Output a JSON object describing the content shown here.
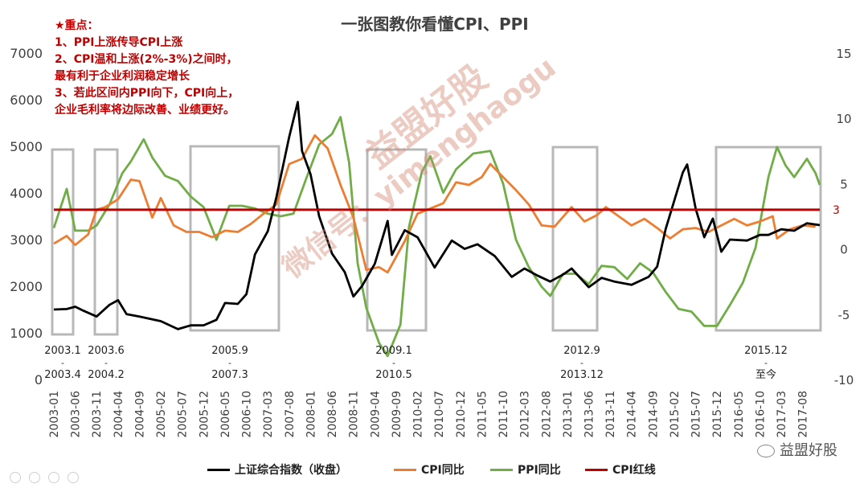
{
  "title": "一张图教你看懂CPI、PPI",
  "notes": [
    "★重点：",
    "1、PPI上涨传导CPI上涨",
    "2、CPI温和上涨(2%-3%)之间时，",
    "最有利于企业利润稳定增长",
    "3、若此区间内PPI向下，CPI向上，",
    "企业毛利率将边际改善、业绩更好。"
  ],
  "watermark": {
    "line1": "益盟好股",
    "line2": "微信号：yimenghaogu"
  },
  "brand": "益盟好股",
  "redline_label": "3",
  "legend": [
    {
      "label": "上证综合指数（收盘）",
      "color": "#000000"
    },
    {
      "label": "CPI同比",
      "color": "#ed7d31"
    },
    {
      "label": "PPI同比",
      "color": "#70ad47"
    },
    {
      "label": "CPI红线",
      "color": "#c00000"
    }
  ],
  "periods": [
    {
      "start": "2003.1",
      "dash": "-",
      "end": "2003.4"
    },
    {
      "start": "2003.6",
      "dash": "-",
      "end": "2004.2"
    },
    {
      "start": "2005.9",
      "dash": "-",
      "end": "2007.3"
    },
    {
      "start": "2009.1",
      "dash": "-",
      "end": "2010.5"
    },
    {
      "start": "2012.9",
      "dash": "-",
      "end": "2013.12"
    },
    {
      "start": "2015.12",
      "dash": "-",
      "end": "至今"
    }
  ],
  "chart_data": {
    "type": "line",
    "title": "一张图教你看懂CPI、PPI",
    "x_ticks": [
      "2003-01",
      "2003-06",
      "2003-11",
      "2004-04",
      "2004-09",
      "2005-02",
      "2005-07",
      "2005-12",
      "2006-05",
      "2006-10",
      "2007-03",
      "2007-08",
      "2008-01",
      "2008-06",
      "2008-11",
      "2009-04",
      "2009-09",
      "2010-02",
      "2010-07",
      "2010-12",
      "2011-05",
      "2011-10",
      "2012-03",
      "2012-08",
      "2013-01",
      "2013-06",
      "2013-11",
      "2014-04",
      "2014-09",
      "2015-02",
      "2015-07",
      "2015-12",
      "2016-05",
      "2016-10",
      "2017-03",
      "2017-08"
    ],
    "y_left_ticks": [
      0,
      1000,
      2000,
      3000,
      4000,
      5000,
      6000,
      7000
    ],
    "y_right_ticks": [
      -10,
      -5,
      0,
      5,
      10,
      15
    ],
    "ylim_left": [
      0,
      7000
    ],
    "ylim_right": [
      -10,
      15
    ],
    "grid": false,
    "legend_position": "bottom",
    "redline": {
      "name": "CPI红线",
      "value": 3,
      "axis": "right"
    },
    "series": [
      {
        "name": "上证综合指数（收盘）",
        "axis": "left",
        "points": [
          [
            "2003-01",
            1500
          ],
          [
            "2003-04",
            1510
          ],
          [
            "2003-06",
            1560
          ],
          [
            "2003-08",
            1470
          ],
          [
            "2003-11",
            1350
          ],
          [
            "2004-02",
            1600
          ],
          [
            "2004-04",
            1700
          ],
          [
            "2004-06",
            1400
          ],
          [
            "2004-09",
            1350
          ],
          [
            "2005-02",
            1250
          ],
          [
            "2005-06",
            1080
          ],
          [
            "2005-09",
            1160
          ],
          [
            "2005-12",
            1160
          ],
          [
            "2006-03",
            1280
          ],
          [
            "2006-05",
            1640
          ],
          [
            "2006-08",
            1620
          ],
          [
            "2006-10",
            1830
          ],
          [
            "2006-12",
            2680
          ],
          [
            "2007-03",
            3180
          ],
          [
            "2007-05",
            3900
          ],
          [
            "2007-08",
            5200
          ],
          [
            "2007-10",
            5950
          ],
          [
            "2007-11",
            4900
          ],
          [
            "2008-01",
            4400
          ],
          [
            "2008-03",
            3500
          ],
          [
            "2008-06",
            2700
          ],
          [
            "2008-09",
            2300
          ],
          [
            "2008-11",
            1780
          ],
          [
            "2009-01",
            2000
          ],
          [
            "2009-04",
            2480
          ],
          [
            "2009-07",
            3400
          ],
          [
            "2009-08",
            2670
          ],
          [
            "2009-11",
            3200
          ],
          [
            "2010-02",
            3050
          ],
          [
            "2010-06",
            2400
          ],
          [
            "2010-10",
            2980
          ],
          [
            "2011-01",
            2800
          ],
          [
            "2011-04",
            2900
          ],
          [
            "2011-08",
            2650
          ],
          [
            "2011-12",
            2200
          ],
          [
            "2012-03",
            2380
          ],
          [
            "2012-06",
            2230
          ],
          [
            "2012-09",
            2100
          ],
          [
            "2012-12",
            2250
          ],
          [
            "2013-02",
            2380
          ],
          [
            "2013-06",
            1980
          ],
          [
            "2013-09",
            2180
          ],
          [
            "2013-12",
            2100
          ],
          [
            "2014-04",
            2030
          ],
          [
            "2014-08",
            2200
          ],
          [
            "2014-10",
            2420
          ],
          [
            "2014-12",
            3230
          ],
          [
            "2015-04",
            4440
          ],
          [
            "2015-05",
            4610
          ],
          [
            "2015-07",
            3660
          ],
          [
            "2015-09",
            3050
          ],
          [
            "2015-11",
            3450
          ],
          [
            "2016-01",
            2740
          ],
          [
            "2016-03",
            3000
          ],
          [
            "2016-07",
            2980
          ],
          [
            "2016-10",
            3100
          ],
          [
            "2016-12",
            3100
          ],
          [
            "2017-03",
            3220
          ],
          [
            "2017-06",
            3190
          ],
          [
            "2017-09",
            3350
          ],
          [
            "2017-12",
            3310
          ]
        ]
      },
      {
        "name": "CPI同比",
        "axis": "right",
        "points": [
          [
            "2003-01",
            0.4
          ],
          [
            "2003-04",
            1.0
          ],
          [
            "2003-06",
            0.3
          ],
          [
            "2003-09",
            1.1
          ],
          [
            "2003-11",
            3.0
          ],
          [
            "2004-01",
            3.2
          ],
          [
            "2004-04",
            3.8
          ],
          [
            "2004-07",
            5.3
          ],
          [
            "2004-09",
            5.2
          ],
          [
            "2004-12",
            2.4
          ],
          [
            "2005-02",
            3.9
          ],
          [
            "2005-05",
            1.8
          ],
          [
            "2005-08",
            1.3
          ],
          [
            "2005-11",
            1.3
          ],
          [
            "2006-02",
            0.9
          ],
          [
            "2006-05",
            1.4
          ],
          [
            "2006-08",
            1.3
          ],
          [
            "2006-11",
            1.9
          ],
          [
            "2007-02",
            2.7
          ],
          [
            "2007-05",
            3.4
          ],
          [
            "2007-08",
            6.5
          ],
          [
            "2007-11",
            6.9
          ],
          [
            "2008-02",
            8.7
          ],
          [
            "2008-05",
            7.7
          ],
          [
            "2008-08",
            4.9
          ],
          [
            "2008-11",
            2.4
          ],
          [
            "2009-02",
            -1.6
          ],
          [
            "2009-05",
            -1.4
          ],
          [
            "2009-07",
            -1.8
          ],
          [
            "2009-11",
            0.6
          ],
          [
            "2010-02",
            2.7
          ],
          [
            "2010-05",
            3.1
          ],
          [
            "2010-08",
            3.5
          ],
          [
            "2010-11",
            5.1
          ],
          [
            "2011-02",
            4.9
          ],
          [
            "2011-05",
            5.5
          ],
          [
            "2011-07",
            6.5
          ],
          [
            "2011-10",
            5.5
          ],
          [
            "2012-01",
            4.5
          ],
          [
            "2012-04",
            3.4
          ],
          [
            "2012-07",
            1.8
          ],
          [
            "2012-10",
            1.7
          ],
          [
            "2013-02",
            3.2
          ],
          [
            "2013-05",
            2.1
          ],
          [
            "2013-08",
            2.6
          ],
          [
            "2013-10",
            3.2
          ],
          [
            "2014-01",
            2.5
          ],
          [
            "2014-04",
            1.8
          ],
          [
            "2014-07",
            2.3
          ],
          [
            "2014-10",
            1.6
          ],
          [
            "2015-01",
            0.8
          ],
          [
            "2015-04",
            1.5
          ],
          [
            "2015-07",
            1.6
          ],
          [
            "2015-10",
            1.3
          ],
          [
            "2016-01",
            1.8
          ],
          [
            "2016-04",
            2.3
          ],
          [
            "2016-07",
            1.8
          ],
          [
            "2016-10",
            2.1
          ],
          [
            "2017-01",
            2.5
          ],
          [
            "2017-02",
            0.8
          ],
          [
            "2017-05",
            1.5
          ],
          [
            "2017-08",
            1.8
          ],
          [
            "2017-11",
            1.7
          ]
        ]
      },
      {
        "name": "PPI同比",
        "axis": "right",
        "points": [
          [
            "2003-01",
            1.6
          ],
          [
            "2003-04",
            4.6
          ],
          [
            "2003-06",
            1.4
          ],
          [
            "2003-09",
            1.4
          ],
          [
            "2003-11",
            1.8
          ],
          [
            "2004-02",
            3.4
          ],
          [
            "2004-05",
            5.8
          ],
          [
            "2004-07",
            6.7
          ],
          [
            "2004-10",
            8.4
          ],
          [
            "2004-12",
            7.0
          ],
          [
            "2005-03",
            5.6
          ],
          [
            "2005-06",
            5.2
          ],
          [
            "2005-09",
            4.0
          ],
          [
            "2005-12",
            3.2
          ],
          [
            "2006-03",
            0.7
          ],
          [
            "2006-06",
            3.3
          ],
          [
            "2006-09",
            3.3
          ],
          [
            "2006-12",
            3.1
          ],
          [
            "2007-03",
            2.7
          ],
          [
            "2007-06",
            2.5
          ],
          [
            "2007-09",
            2.7
          ],
          [
            "2007-12",
            5.4
          ],
          [
            "2008-03",
            8.0
          ],
          [
            "2008-06",
            8.8
          ],
          [
            "2008-08",
            10.1
          ],
          [
            "2008-10",
            6.6
          ],
          [
            "2008-12",
            -1.1
          ],
          [
            "2009-02",
            -4.5
          ],
          [
            "2009-05",
            -7.2
          ],
          [
            "2009-07",
            -8.2
          ],
          [
            "2009-10",
            -5.8
          ],
          [
            "2009-12",
            1.7
          ],
          [
            "2010-03",
            5.9
          ],
          [
            "2010-05",
            7.1
          ],
          [
            "2010-08",
            4.3
          ],
          [
            "2010-11",
            6.1
          ],
          [
            "2011-03",
            7.3
          ],
          [
            "2011-07",
            7.5
          ],
          [
            "2011-10",
            5.0
          ],
          [
            "2012-01",
            0.7
          ],
          [
            "2012-04",
            -1.4
          ],
          [
            "2012-07",
            -2.9
          ],
          [
            "2012-09",
            -3.6
          ],
          [
            "2012-12",
            -1.9
          ],
          [
            "2013-03",
            -1.9
          ],
          [
            "2013-06",
            -2.7
          ],
          [
            "2013-09",
            -1.3
          ],
          [
            "2013-12",
            -1.4
          ],
          [
            "2014-03",
            -2.3
          ],
          [
            "2014-06",
            -1.1
          ],
          [
            "2014-09",
            -1.8
          ],
          [
            "2014-12",
            -3.3
          ],
          [
            "2015-03",
            -4.6
          ],
          [
            "2015-06",
            -4.8
          ],
          [
            "2015-09",
            -5.9
          ],
          [
            "2015-12",
            -5.9
          ],
          [
            "2016-03",
            -4.3
          ],
          [
            "2016-06",
            -2.6
          ],
          [
            "2016-09",
            0.1
          ],
          [
            "2016-12",
            5.5
          ],
          [
            "2017-02",
            7.8
          ],
          [
            "2017-04",
            6.4
          ],
          [
            "2017-06",
            5.5
          ],
          [
            "2017-09",
            6.9
          ],
          [
            "2017-11",
            5.8
          ],
          [
            "2017-12",
            4.9
          ]
        ]
      }
    ]
  }
}
